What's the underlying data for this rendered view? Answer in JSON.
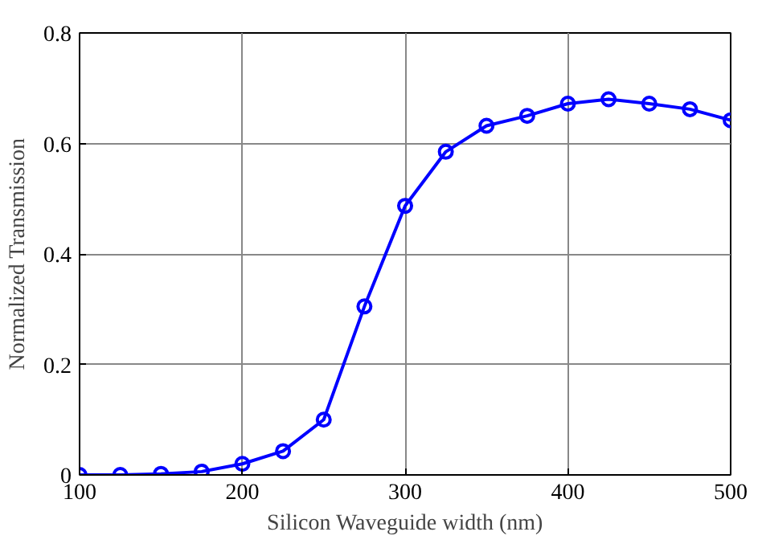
{
  "chart_data": {
    "type": "line",
    "xlabel": "Silicon Waveguide width (nm)",
    "ylabel": "Normalized Transmission",
    "x": [
      100,
      125,
      150,
      175,
      200,
      225,
      250,
      275,
      300,
      325,
      350,
      375,
      400,
      425,
      450,
      475,
      500
    ],
    "series": [
      {
        "color": "#0000ff",
        "values": [
          0.0,
          0.0,
          0.002,
          0.006,
          0.02,
          0.043,
          0.1,
          0.305,
          0.487,
          0.585,
          0.632,
          0.65,
          0.672,
          0.68,
          0.672,
          0.662,
          0.642
        ]
      }
    ],
    "xlim": [
      100,
      500
    ],
    "ylim": [
      0,
      0.8
    ],
    "xticks": [
      100,
      200,
      300,
      400,
      500
    ],
    "yticks": [
      0,
      0.2,
      0.4,
      0.6,
      0.8
    ],
    "grid": true,
    "marker": "circle",
    "line_style": "solid"
  }
}
